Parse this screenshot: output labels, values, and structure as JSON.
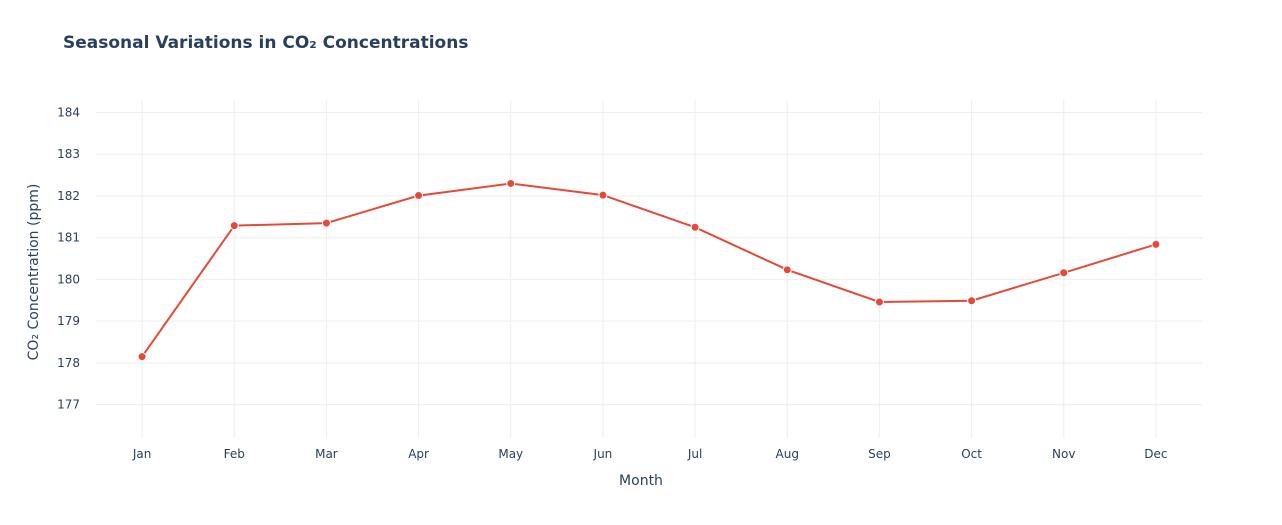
{
  "chart_data": {
    "type": "line",
    "title": "Seasonal Variations in CO₂ Concentrations",
    "xlabel": "Month",
    "ylabel": "CO₂ Concentration (ppm)",
    "categories": [
      "Jan",
      "Feb",
      "Mar",
      "Apr",
      "May",
      "Jun",
      "Jul",
      "Aug",
      "Sep",
      "Oct",
      "Nov",
      "Dec"
    ],
    "series": [
      {
        "values": [
          178.15,
          181.29,
          181.35,
          182.01,
          182.3,
          182.02,
          181.25,
          180.23,
          179.46,
          179.49,
          180.16,
          180.84
        ]
      }
    ],
    "yticks": [
      177,
      178,
      179,
      180,
      181,
      182,
      183,
      184
    ],
    "ylim": [
      176.2,
      184.3
    ],
    "grid": true,
    "legend": "none",
    "colors": {
      "line": "#e5493a",
      "grid": "#eeeeee",
      "text": "#2a3f5f"
    }
  }
}
